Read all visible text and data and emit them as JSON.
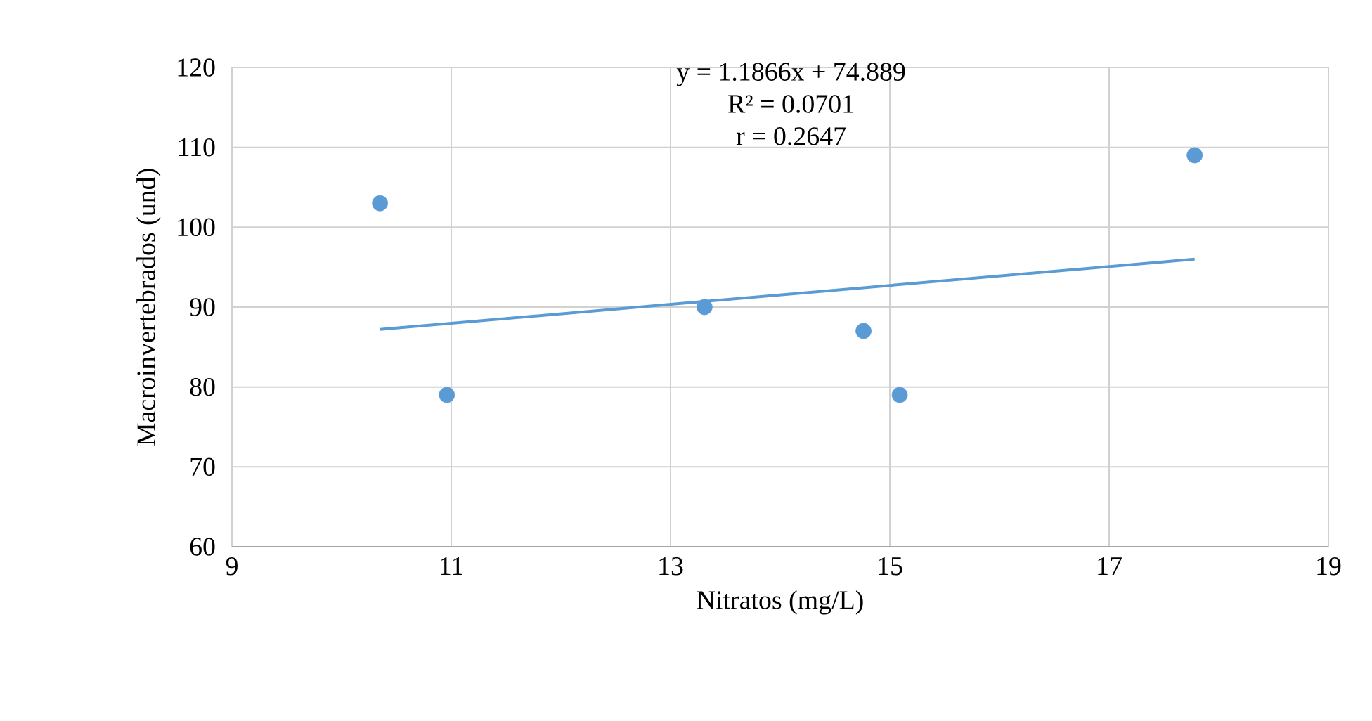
{
  "chart_data": {
    "type": "scatter",
    "xlabel": "Nitratos (mg/L)",
    "ylabel": "Macroinvertebrados (und)",
    "xlim": [
      9,
      19
    ],
    "ylim": [
      60,
      120
    ],
    "xticks": [
      9,
      11,
      13,
      15,
      17,
      19
    ],
    "yticks": [
      60,
      70,
      80,
      90,
      100,
      110,
      120
    ],
    "grid": true,
    "marker": "circle",
    "annotations": [
      "y = 1.1866x + 74.889",
      "R² = 0.0701",
      "r = 0.2647"
    ],
    "series": [
      {
        "color": "#5b9bd5",
        "x": [
          10.35,
          10.96,
          13.31,
          14.76,
          15.09,
          17.78
        ],
        "values": [
          103,
          79,
          90,
          87,
          79,
          109
        ]
      },
      {
        "type": "line",
        "marker": "none",
        "color": "#5b9bd5",
        "x": [
          10.35,
          17.78
        ],
        "values": [
          87.2,
          96.0
        ]
      }
    ]
  }
}
